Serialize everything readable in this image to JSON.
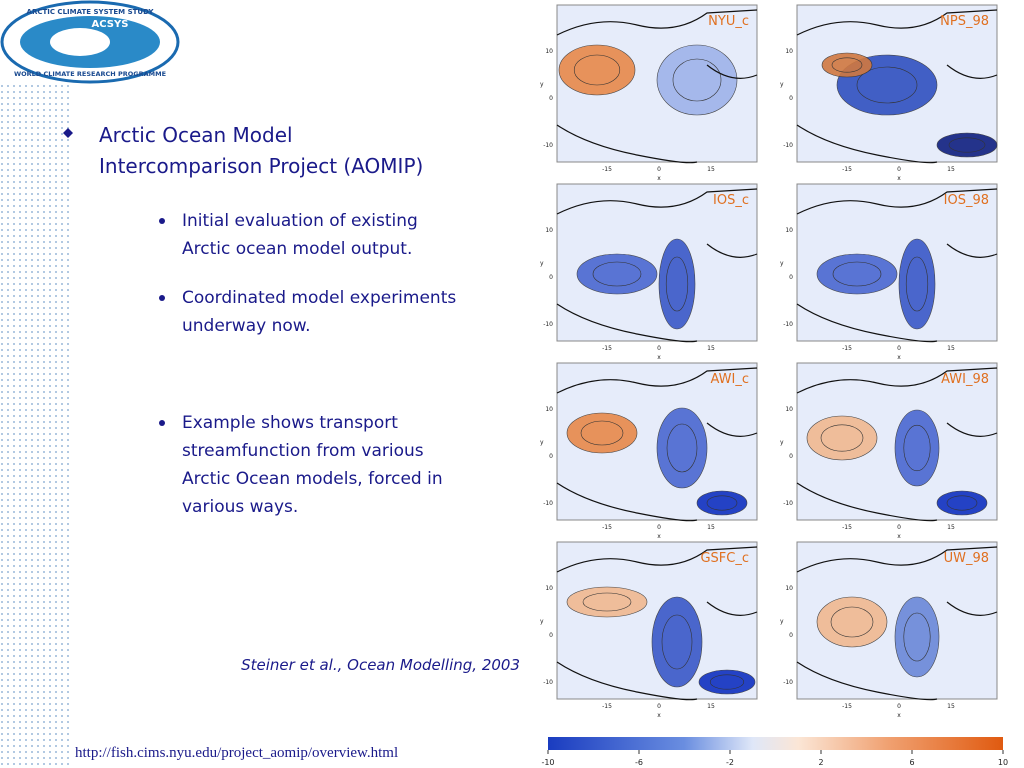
{
  "logo": {
    "top": "ARCTIC CLIMATE SYSTEM STUDY",
    "name": "ACSYS",
    "bottom": "WORLD CLIMATE RESEARCH PROGRAMME"
  },
  "main_bullet": {
    "line1": "Arctic Ocean Model",
    "line2": "Intercomparison Project (AOMIP)"
  },
  "sub_bullets": [
    [
      "Initial evaluation of existing",
      "Arctic ocean model output."
    ],
    [
      "Coordinated model experiments",
      "underway now."
    ],
    [
      "Example shows transport",
      "streamfunction from various",
      "Arctic Ocean models, forced in",
      "various ways."
    ]
  ],
  "citation": "Steiner et al., Ocean Modelling, 2003",
  "url": "http://fish.cims.nyu.edu/project_aomip/overview.html",
  "figure": {
    "panels": [
      "NYU_c",
      "NPS_98",
      "IOS_c",
      "IOS_98",
      "AWI_c",
      "AWI_98",
      "GSFC_c",
      "UW_98"
    ],
    "yticks": [
      "10",
      "0",
      "-10"
    ],
    "xticks": [
      "-15",
      "0",
      "15"
    ],
    "xlabel": "x",
    "ylabel": "y",
    "colorbar": {
      "lim": [
        -10,
        10
      ],
      "ticks": [
        -10,
        -6,
        -2,
        2,
        6,
        10
      ]
    }
  }
}
